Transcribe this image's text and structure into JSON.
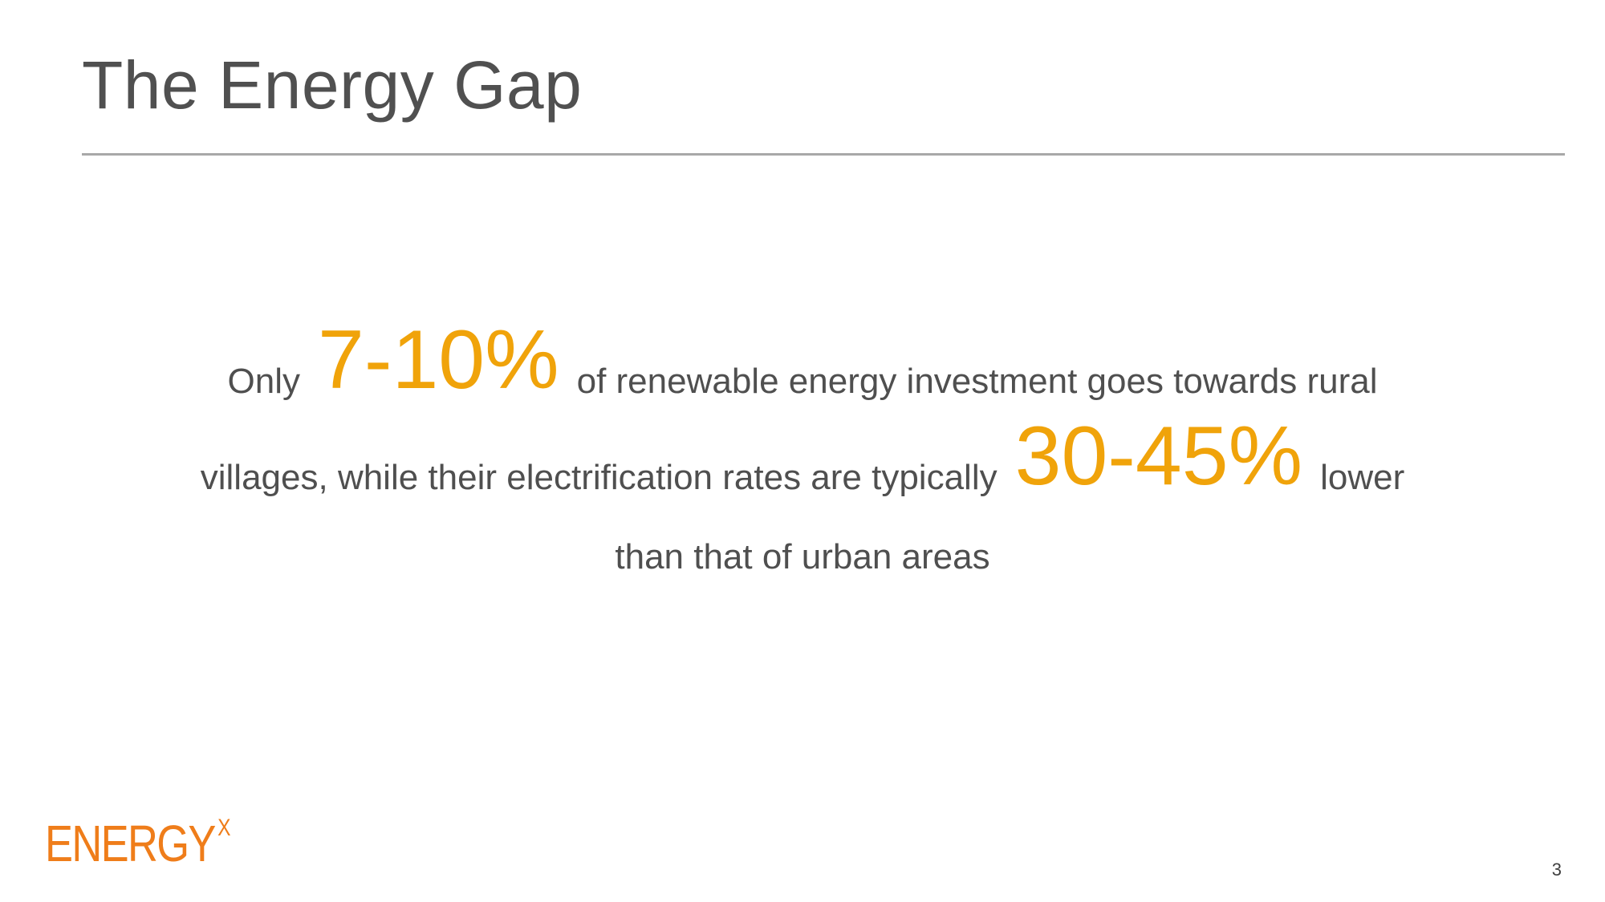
{
  "slide": {
    "title": "The Energy Gap",
    "body": {
      "line1_pre": "Only",
      "stat1": "7-10%",
      "line1_post": "of renewable energy investment goes towards rural",
      "line2_pre": "villages, while their electrification rates are typically",
      "stat2": "30-45%",
      "line2_post": "lower",
      "line3": "than that of urban areas"
    },
    "logo": {
      "text": "ENERGY",
      "superscript": "X"
    },
    "page_number": "3"
  },
  "colors": {
    "accent": "#f0a30a",
    "logo": "#ef7d1a",
    "title": "#505050",
    "rule": "#a8a8a8"
  }
}
